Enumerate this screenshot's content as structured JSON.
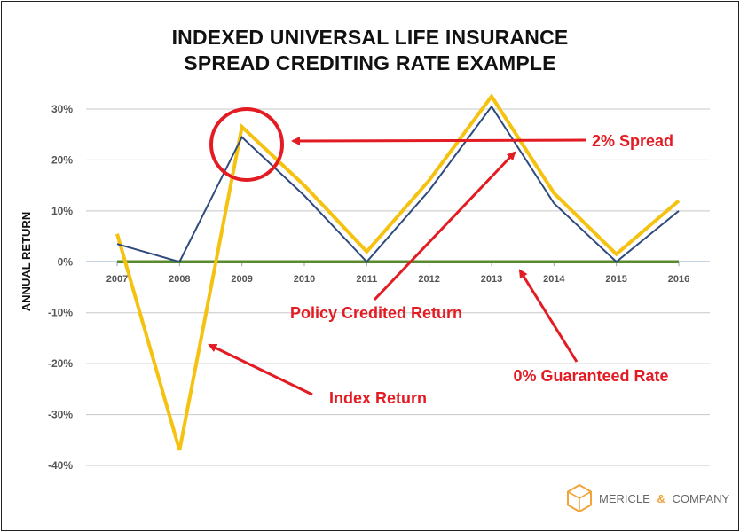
{
  "chart_data": {
    "type": "line",
    "title": [
      "INDEXED UNIVERSAL LIFE INSURANCE",
      "SPREAD CREDITING RATE EXAMPLE"
    ],
    "ylabel": "ANNUAL RETURN",
    "xlabel": "",
    "x": [
      "2007",
      "2008",
      "2009",
      "2010",
      "2011",
      "2012",
      "2013",
      "2014",
      "2015",
      "2016"
    ],
    "ylim": [
      -40,
      30
    ],
    "yticks": [
      30,
      20,
      10,
      0,
      -10,
      -20,
      -30,
      -40
    ],
    "ytick_labels": [
      "30%",
      "20%",
      "10%",
      "0%",
      "-10%",
      "-20%",
      "-30%",
      "-40%"
    ],
    "grid": true,
    "series": [
      {
        "name": "Index Return",
        "color": "#f5c211",
        "values": [
          5.5,
          -37,
          26.5,
          15,
          2,
          16,
          32.5,
          13.5,
          1.5,
          12
        ]
      },
      {
        "name": "Policy Credited Return",
        "color": "#2e4a7d",
        "values": [
          3.5,
          0,
          24.5,
          13,
          0,
          14,
          30.5,
          11.5,
          0,
          10
        ]
      },
      {
        "name": "0% Guaranteed Rate",
        "color": "#5a8a2e",
        "values": [
          0,
          0,
          0,
          0,
          0,
          0,
          0,
          0,
          0,
          0
        ]
      }
    ],
    "annotations": [
      {
        "text": "2% Spread",
        "color": "#e31b23"
      },
      {
        "text": "Policy Credited Return",
        "color": "#e31b23"
      },
      {
        "text": "0% Guaranteed Rate",
        "color": "#e31b23"
      },
      {
        "text": "Index Return",
        "color": "#e31b23"
      }
    ]
  },
  "logo": {
    "name_left": "MERICLE",
    "amp": "&",
    "name_right": "COMPANY",
    "icon": "cube-icon",
    "accent": "#f0a43a"
  }
}
